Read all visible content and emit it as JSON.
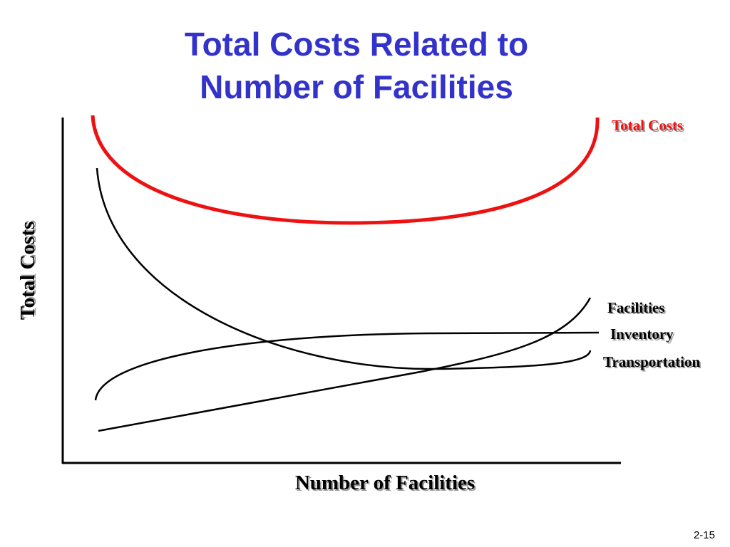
{
  "title": [
    "Total Costs Related to",
    "Number of Facilities"
  ],
  "curve_labels": {
    "total_costs": "Total Costs",
    "facilities": "Facilities",
    "inventory": "Inventory",
    "transportation": "Transportation"
  },
  "axes": {
    "y_label": "Total Costs",
    "x_label": "Number of Facilities"
  },
  "page_number": "2-15"
}
